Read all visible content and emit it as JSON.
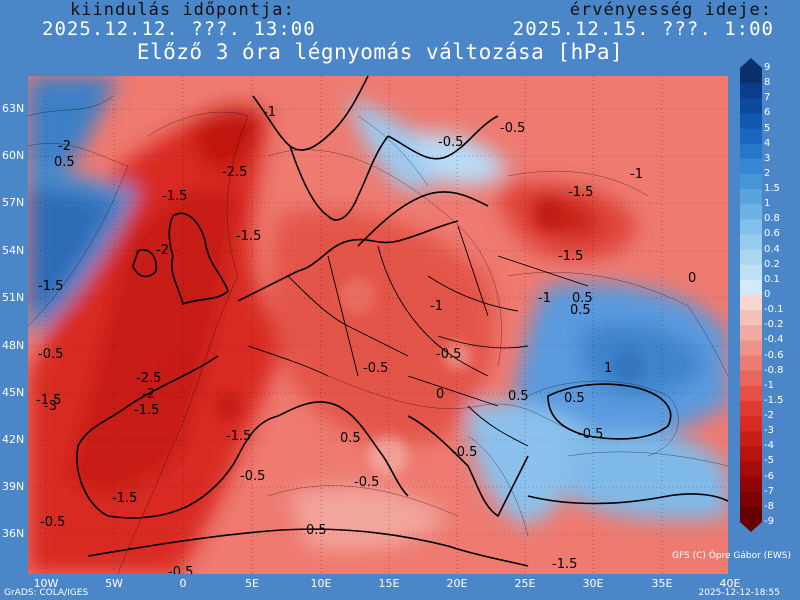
{
  "header": {
    "start_label": "kiindulás időpontja:",
    "start_time": "2025.12.12. ???. 13:00",
    "valid_label": "érvényesség ideje:",
    "valid_time": "2025.12.15. ???. 1:00",
    "title": "Előző 3 óra légnyomás változása [hPa]"
  },
  "lat_labels": [
    "63N",
    "60N",
    "57N",
    "54N",
    "51N",
    "48N",
    "45N",
    "42N",
    "39N",
    "36N"
  ],
  "lon_labels": [
    "10W",
    "5W",
    "0",
    "5E",
    "10E",
    "15E",
    "20E",
    "25E",
    "30E",
    "35E",
    "40E"
  ],
  "colorbar": {
    "labels": [
      "9",
      "8",
      "7",
      "6",
      "5",
      "4",
      "3",
      "2",
      "1.5",
      "1",
      "0.8",
      "0.6",
      "0.4",
      "0.2",
      "0.1",
      "0",
      "-0.1",
      "-0.2",
      "-0.4",
      "-0.6",
      "-0.8",
      "-1",
      "-1.5",
      "-2",
      "-3",
      "-4",
      "-5",
      "-6",
      "-7",
      "-8",
      "-9"
    ],
    "colors": [
      "#08306b",
      "#0b3d8a",
      "#0d4a9e",
      "#1158b0",
      "#1967be",
      "#2677c8",
      "#3487d0",
      "#4796d8",
      "#5aa4de",
      "#6eb2e4",
      "#82bfe9",
      "#96cbee",
      "#aad6f2",
      "#bee1f6",
      "#d2ebfa",
      "#f7d6d2",
      "#f4c0ba",
      "#f1a9a2",
      "#ee938a",
      "#eb7c72",
      "#e8665b",
      "#e54f44",
      "#e03a30",
      "#d62a22",
      "#c81e18",
      "#b71410",
      "#a40c0a",
      "#900606",
      "#7c0202",
      "#680000"
    ]
  },
  "contour_labels": [
    "-0.5",
    "-2",
    "0.5",
    "-1",
    "-1.5",
    "-2.5",
    "-1.5",
    "-2",
    "-1.5",
    "-0.5",
    "-1",
    "-1.5",
    "-1",
    "-1.5",
    "-0.5",
    "0",
    "-1",
    "-0.5",
    "0.5",
    "0.5",
    "-0.5",
    "-2.5",
    "-2",
    "-3",
    "-1.5",
    "-1.5",
    "-0.5",
    "-0.5",
    "0",
    "0.5",
    "1",
    "0.5",
    "-0.5",
    "-1.5",
    "-1.5",
    "-0.5",
    "0.5",
    "-0.5",
    "0.5",
    "-1.5",
    "-0.5"
  ],
  "footer": {
    "left": "GrADS: COLA/IGES",
    "right": "2025-12-12-18:55",
    "credit": "GFS (C) Ópre Gábor (EWS)"
  }
}
